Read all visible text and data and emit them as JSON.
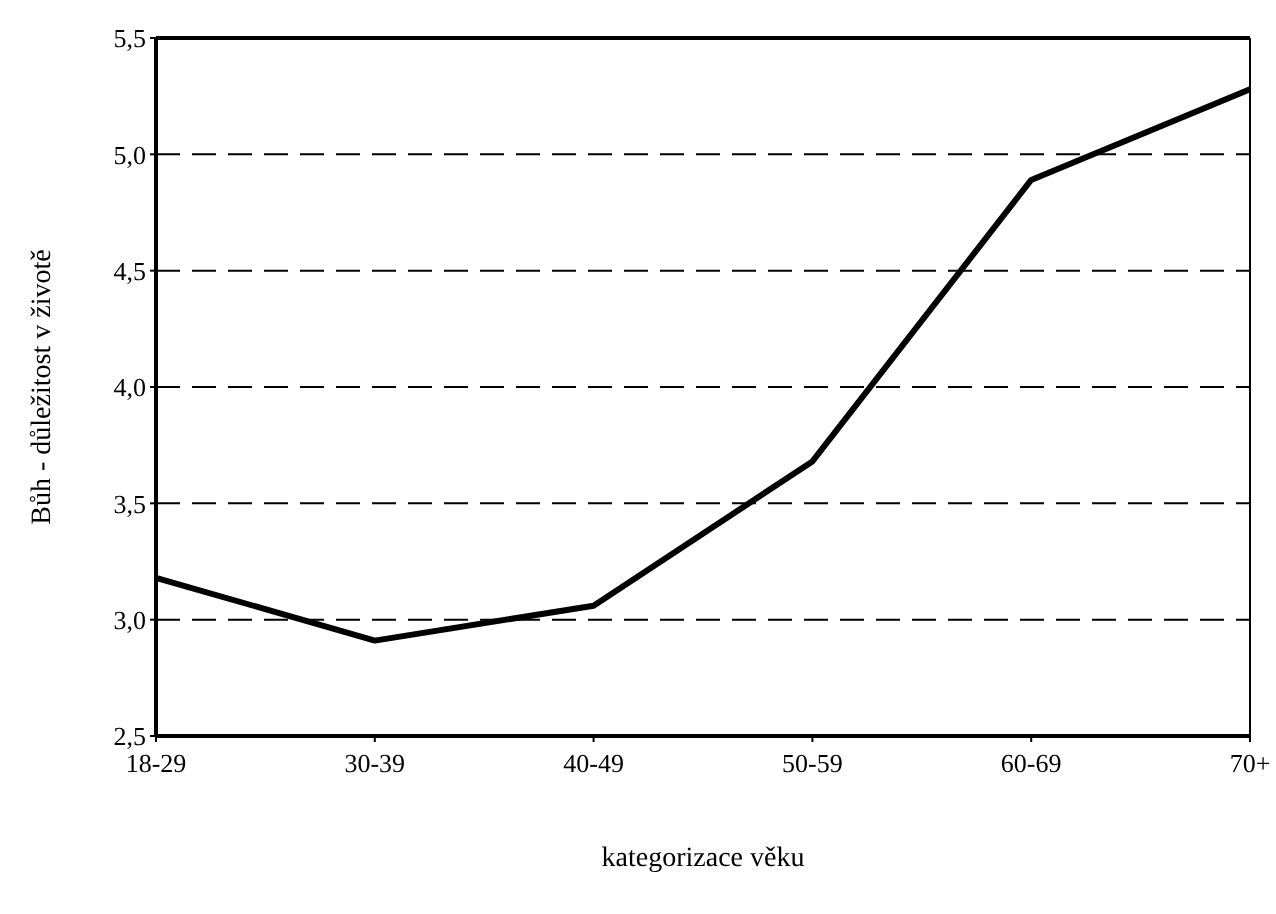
{
  "chart_data": {
    "type": "line",
    "xlabel": "kategorizace věku",
    "ylabel": "Bůh - důležitost v životě",
    "categories": [
      "18-29",
      "30-39",
      "40-49",
      "50-59",
      "60-69",
      "70+"
    ],
    "series": [
      {
        "color": "#000000",
        "values": [
          3.18,
          2.91,
          3.06,
          3.68,
          4.89,
          5.28
        ]
      }
    ],
    "ylim": [
      2.5,
      5.5
    ],
    "yticks": [
      {
        "value": 2.5,
        "label": "2,5"
      },
      {
        "value": 3,
        "label": "3,0"
      },
      {
        "value": 3.5,
        "label": "3,5"
      },
      {
        "value": 4,
        "label": "4,0"
      },
      {
        "value": 4.5,
        "label": "4,5"
      },
      {
        "value": 5,
        "label": "5,0"
      },
      {
        "value": 5.5,
        "label": "5,5"
      }
    ],
    "grid": "y",
    "marker": "none",
    "line_style": "solid",
    "legend": false
  }
}
